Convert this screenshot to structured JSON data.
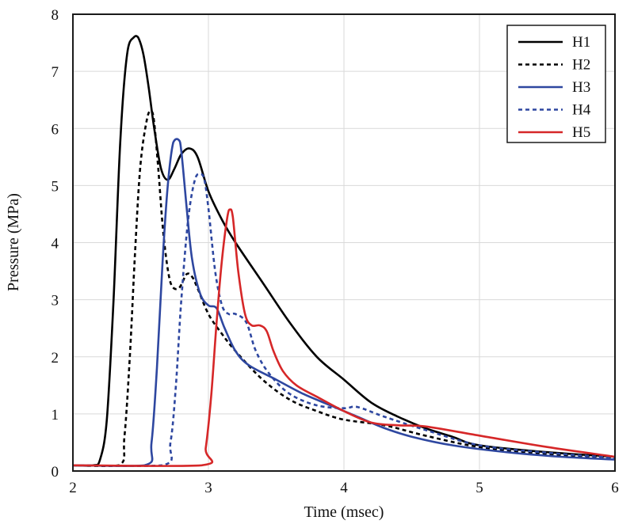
{
  "chart_data": {
    "type": "line",
    "title": "",
    "xlabel": "Time (msec)",
    "ylabel": "Pressure (MPa)",
    "xlim": [
      2,
      6
    ],
    "ylim": [
      0,
      8
    ],
    "xticks": [
      2,
      3,
      4,
      5,
      6
    ],
    "yticks": [
      0,
      1,
      2,
      3,
      4,
      5,
      6,
      7,
      8
    ],
    "grid": true,
    "legend_position": "top-right",
    "series": [
      {
        "name": "H1",
        "color": "#000000",
        "dash": "solid",
        "x": [
          2.0,
          2.15,
          2.2,
          2.25,
          2.3,
          2.35,
          2.4,
          2.45,
          2.48,
          2.52,
          2.56,
          2.6,
          2.65,
          2.7,
          2.75,
          2.8,
          2.86,
          2.92,
          3.0,
          3.1,
          3.2,
          3.4,
          3.6,
          3.8,
          4.0,
          4.2,
          4.4,
          4.6,
          4.8,
          5.0,
          5.5,
          6.0
        ],
        "y": [
          0.1,
          0.1,
          0.2,
          0.9,
          3.0,
          5.8,
          7.3,
          7.6,
          7.6,
          7.3,
          6.7,
          6.0,
          5.3,
          5.1,
          5.3,
          5.55,
          5.65,
          5.5,
          4.9,
          4.4,
          4.0,
          3.3,
          2.6,
          2.0,
          1.6,
          1.2,
          0.95,
          0.75,
          0.6,
          0.45,
          0.33,
          0.25
        ]
      },
      {
        "name": "H2",
        "color": "#000000",
        "dash": "dash",
        "x": [
          2.0,
          2.34,
          2.38,
          2.42,
          2.46,
          2.5,
          2.55,
          2.58,
          2.6,
          2.63,
          2.67,
          2.72,
          2.78,
          2.84,
          2.88,
          2.92,
          3.0,
          3.1,
          3.2,
          3.4,
          3.6,
          3.8,
          4.0,
          4.3,
          4.6,
          5.0,
          5.5,
          6.0
        ],
        "y": [
          0.1,
          0.1,
          0.6,
          2.0,
          3.9,
          5.4,
          6.2,
          6.3,
          6.1,
          5.3,
          4.1,
          3.3,
          3.2,
          3.45,
          3.4,
          3.2,
          2.75,
          2.4,
          2.1,
          1.6,
          1.25,
          1.05,
          0.9,
          0.8,
          0.62,
          0.42,
          0.3,
          0.22
        ]
      },
      {
        "name": "H3",
        "color": "#2e47a0",
        "dash": "solid",
        "x": [
          2.0,
          2.53,
          2.58,
          2.62,
          2.66,
          2.7,
          2.74,
          2.78,
          2.8,
          2.84,
          2.88,
          2.94,
          3.0,
          3.06,
          3.12,
          3.2,
          3.3,
          3.5,
          3.7,
          3.9,
          4.1,
          4.3,
          4.5,
          4.8,
          5.2,
          5.6,
          6.0
        ],
        "y": [
          0.1,
          0.1,
          0.5,
          1.8,
          3.6,
          5.0,
          5.75,
          5.8,
          5.6,
          4.6,
          3.7,
          3.1,
          2.9,
          2.85,
          2.5,
          2.1,
          1.85,
          1.6,
          1.35,
          1.15,
          0.95,
          0.75,
          0.6,
          0.45,
          0.33,
          0.25,
          0.2
        ]
      },
      {
        "name": "H4",
        "color": "#2e47a0",
        "dash": "dash",
        "x": [
          2.0,
          2.66,
          2.72,
          2.76,
          2.8,
          2.85,
          2.9,
          2.94,
          2.97,
          3.0,
          3.05,
          3.1,
          3.15,
          3.2,
          3.28,
          3.35,
          3.45,
          3.6,
          3.8,
          4.0,
          4.1,
          4.3,
          4.6,
          5.0,
          5.5,
          6.0
        ],
        "y": [
          0.1,
          0.1,
          0.5,
          1.5,
          3.0,
          4.4,
          5.1,
          5.2,
          5.1,
          4.6,
          3.5,
          2.9,
          2.75,
          2.75,
          2.6,
          2.1,
          1.7,
          1.35,
          1.15,
          1.1,
          1.12,
          0.95,
          0.72,
          0.45,
          0.32,
          0.23
        ]
      },
      {
        "name": "H5",
        "color": "#d62728",
        "dash": "solid",
        "x": [
          2.0,
          2.95,
          2.98,
          3.02,
          3.06,
          3.1,
          3.14,
          3.16,
          3.18,
          3.22,
          3.27,
          3.32,
          3.38,
          3.43,
          3.48,
          3.55,
          3.65,
          3.8,
          4.0,
          4.2,
          4.4,
          4.6,
          5.0,
          5.5,
          6.0
        ],
        "y": [
          0.1,
          0.1,
          0.4,
          1.3,
          2.6,
          3.7,
          4.45,
          4.58,
          4.45,
          3.5,
          2.75,
          2.55,
          2.55,
          2.45,
          2.1,
          1.75,
          1.5,
          1.3,
          1.05,
          0.85,
          0.8,
          0.78,
          0.62,
          0.42,
          0.25
        ]
      }
    ]
  }
}
